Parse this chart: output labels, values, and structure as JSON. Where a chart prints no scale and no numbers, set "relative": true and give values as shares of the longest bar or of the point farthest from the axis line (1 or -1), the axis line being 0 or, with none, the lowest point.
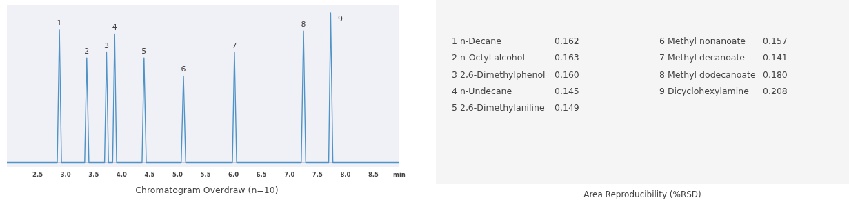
{
  "chart_data": [
    {
      "type": "line",
      "title": "Chromatogram Overdraw (n=10)",
      "xlabel": "min",
      "relative": true,
      "series": [
        {
          "color": "#4f93c6",
          "x": [
            1.95,
            2.85,
            2.888,
            2.925,
            3.34,
            3.377,
            3.415,
            3.695,
            3.73,
            3.765,
            3.84,
            3.875,
            3.91,
            4.365,
            4.4,
            4.44,
            5.065,
            5.105,
            5.145,
            5.98,
            6.016,
            6.055,
            7.21,
            7.25,
            7.29,
            7.7,
            7.735,
            7.775,
            8.95
          ],
          "values": [
            0,
            0,
            0.89,
            0,
            0,
            0.7,
            0,
            0,
            0.74,
            0,
            0,
            0.86,
            0,
            0,
            0.7,
            0,
            0,
            0.58,
            0,
            0,
            0.74,
            0,
            0,
            0.88,
            0,
            0,
            1.0,
            0,
            0
          ]
        }
      ],
      "xlim": [
        1.95,
        8.95
      ],
      "xticks": [
        2.5,
        {
          "value": 3,
          "label": "3.0"
        },
        3.5,
        {
          "value": 4,
          "label": "4.0"
        },
        4.5,
        {
          "value": 5,
          "label": "5.0"
        },
        5.5,
        {
          "value": 6,
          "label": "6.0"
        },
        6.5,
        {
          "value": 7,
          "label": "7.0"
        },
        7.5,
        {
          "value": 8,
          "label": "8.0"
        },
        8.5
      ],
      "annotations": [
        {
          "text": "1",
          "x": 2.888,
          "y": 0.89
        },
        {
          "text": "2",
          "x": 3.377,
          "y": 0.7
        },
        {
          "text": "3",
          "x": 3.73,
          "y": 0.74
        },
        {
          "text": "4",
          "x": 3.875,
          "y": 0.86
        },
        {
          "text": "5",
          "x": 4.4,
          "y": 0.7
        },
        {
          "text": "6",
          "x": 5.105,
          "y": 0.58
        },
        {
          "text": "7",
          "x": 6.016,
          "y": 0.74
        },
        {
          "text": "8",
          "x": 7.25,
          "y": 0.88
        },
        {
          "text": "9",
          "x": 7.735,
          "y": 1.0
        }
      ]
    },
    {
      "type": "other",
      "title": "Area Reproducibility (%RSD)",
      "annotations": [
        "1 n-Decane",
        "0.162",
        "2 n-Octyl alcohol",
        "0.163",
        "3 2,6-Dimethylphenol",
        "0.160",
        "4 n-Undecane",
        "0.145",
        "5 2,6-Dimethylaniline",
        "0.149",
        "6 Methyl nonanoate",
        "0.157",
        "7 Methyl decanoate",
        "0.141",
        "8 Methyl dodecanoate",
        "0.180",
        "9 Dicyclohexylamine",
        "0.208"
      ]
    }
  ]
}
